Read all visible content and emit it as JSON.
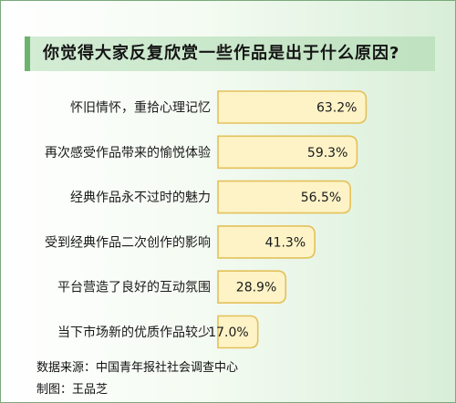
{
  "chart_data": {
    "type": "bar",
    "title": "你觉得大家反复欣赏一些作品是出于什么原因?",
    "categories": [
      "怀旧情怀，重拾心理记忆",
      "再次感受作品带来的愉悦体验",
      "经典作品永不过时的魅力",
      "受到经典作品二次创作的影响",
      "平台营造了良好的互动氛围",
      "当下市场新的优质作品较少"
    ],
    "values": [
      63.2,
      59.3,
      56.5,
      41.3,
      28.9,
      17.0
    ],
    "value_labels": [
      "63.2%",
      "59.3%",
      "56.5%",
      "41.3%",
      "28.9%",
      "17.0%"
    ],
    "xlim": [
      0,
      100
    ],
    "bar_color": "#fdf3c6",
    "bar_border_color": "#e4c15a"
  },
  "footer": {
    "source": "数据来源：中国青年报社社会调查中心",
    "credit": "制图：王品芝"
  }
}
